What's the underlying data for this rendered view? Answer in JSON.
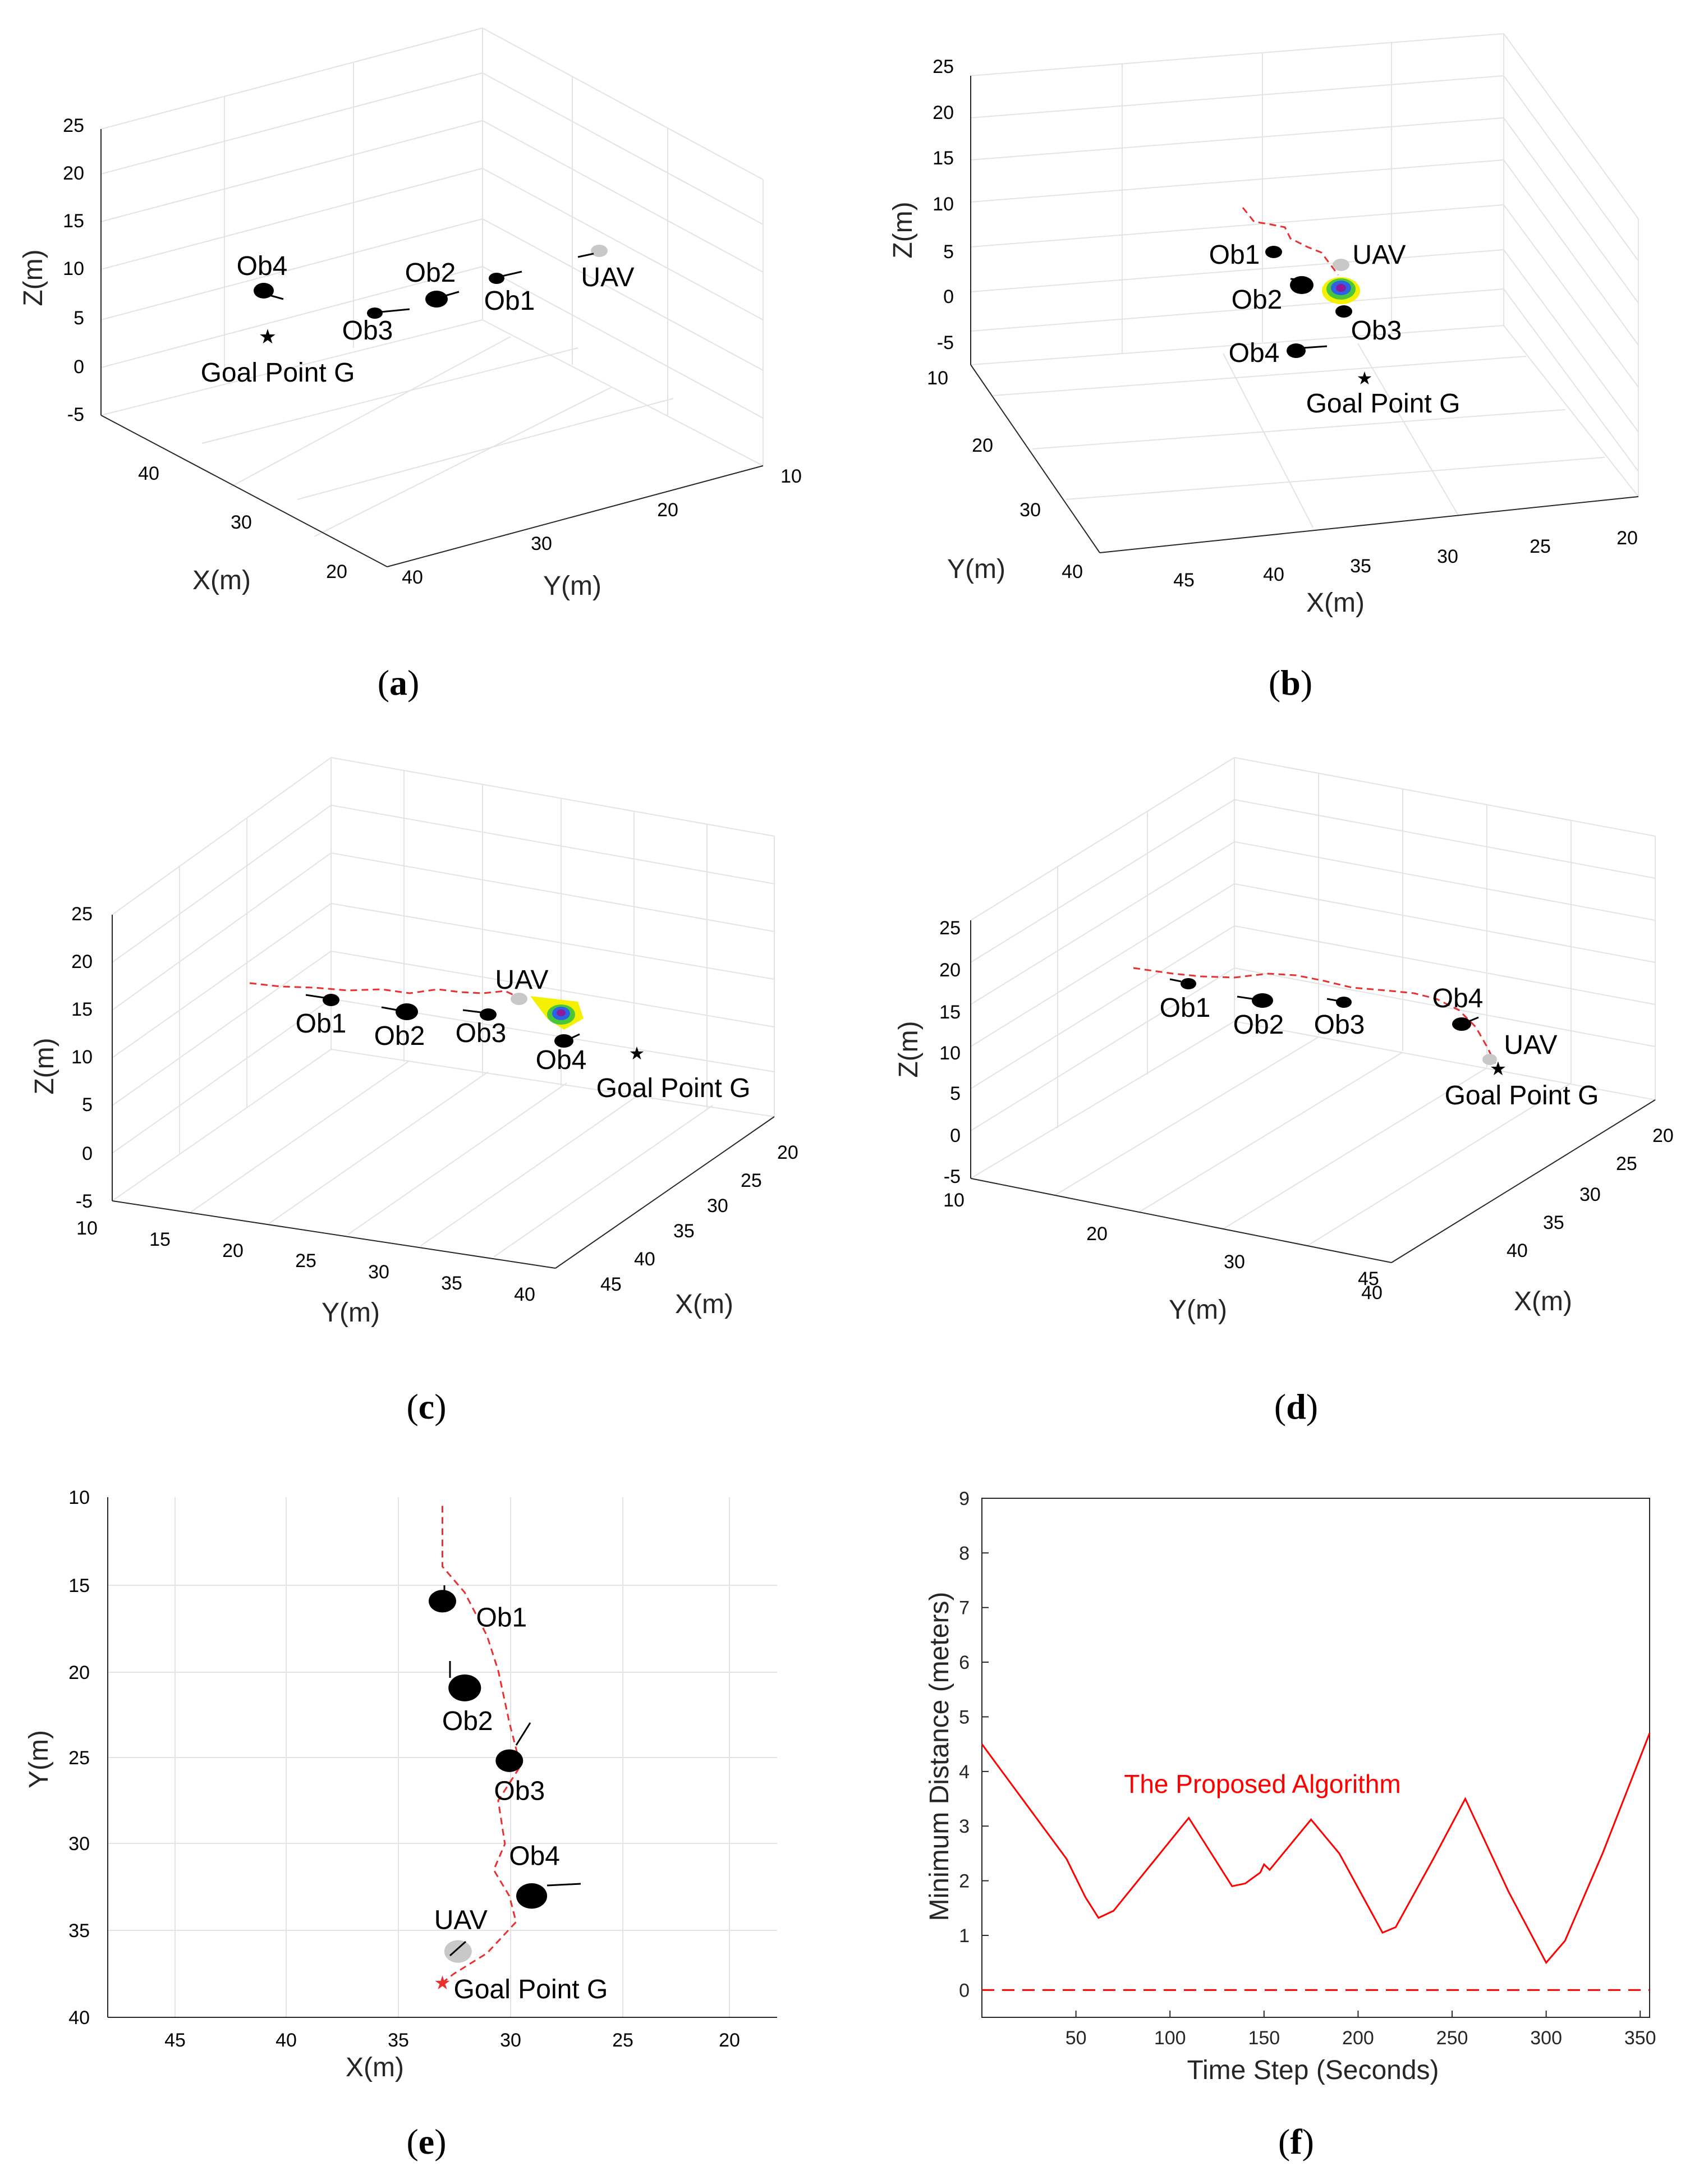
{
  "panels": [
    {
      "caption": "a",
      "xlabel": "X(m)",
      "ylabel": "Y(m)",
      "zlabel": "Z(m)",
      "z_ticks": [
        "25",
        "20",
        "15",
        "10",
        "5",
        "0",
        "-5"
      ],
      "x_ticks": [
        "40",
        "30",
        "20"
      ],
      "y_ticks": [
        "10",
        "20",
        "30",
        "40"
      ],
      "objects": [
        "Ob4",
        "Ob2",
        "Ob1",
        "Ob3",
        "UAV",
        "Goal Point G"
      ]
    },
    {
      "caption": "b",
      "xlabel": "X(m)",
      "ylabel": "Y(m)",
      "zlabel": "Z(m)",
      "z_ticks": [
        "25",
        "20",
        "15",
        "10",
        "5",
        "0",
        "-5"
      ],
      "x_ticks": [
        "45",
        "40",
        "35",
        "30",
        "25",
        "20"
      ],
      "y_ticks": [
        "10",
        "20",
        "30",
        "40"
      ],
      "objects": [
        "Ob1",
        "UAV",
        "Ob2",
        "Ob3",
        "Ob4",
        "Goal Point G"
      ]
    },
    {
      "caption": "c",
      "xlabel": "X(m)",
      "ylabel": "Y(m)",
      "zlabel": "Z(m)",
      "z_ticks": [
        "25",
        "20",
        "15",
        "10",
        "5",
        "0",
        "-5"
      ],
      "x_ticks": [
        "20",
        "25",
        "30",
        "35",
        "40",
        "45"
      ],
      "y_ticks": [
        "10",
        "15",
        "20",
        "25",
        "30",
        "35",
        "40"
      ],
      "objects": [
        "UAV",
        "Ob1",
        "Ob2",
        "Ob3",
        "Ob4",
        "Goal Point G"
      ]
    },
    {
      "caption": "d",
      "xlabel": "X(m)",
      "ylabel": "Y(m)",
      "zlabel": "Z(m)",
      "z_ticks": [
        "25",
        "20",
        "15",
        "10",
        "5",
        "0",
        "-5"
      ],
      "x_ticks": [
        "20",
        "25",
        "30",
        "35",
        "40",
        "45"
      ],
      "y_ticks": [
        "10",
        "20",
        "30",
        "40"
      ],
      "objects": [
        "Ob1",
        "Ob2",
        "Ob3",
        "Ob4",
        "UAV",
        "Goal Point G"
      ]
    },
    {
      "caption": "e",
      "xlabel": "X(m)",
      "ylabel": "Y(m)",
      "x_ticks": [
        "45",
        "40",
        "35",
        "30",
        "25",
        "20"
      ],
      "y_ticks": [
        "10",
        "15",
        "20",
        "25",
        "30",
        "35",
        "40"
      ],
      "objects": [
        "Ob1",
        "Ob2",
        "Ob3",
        "Ob4",
        "UAV",
        "Goal Point G"
      ]
    },
    {
      "caption": "f",
      "xlabel": "Time Step (Seconds)",
      "ylabel": "Minimum Distance (meters)",
      "annotation": "The Proposed Algorithm"
    }
  ],
  "chart_data": [
    {
      "panel": "e",
      "type": "line",
      "title": "",
      "xlabel": "X(m)",
      "ylabel": "Y(m)",
      "xlim": [
        48,
        18
      ],
      "ylim": [
        40,
        10
      ],
      "series": [
        {
          "name": "UAV path",
          "style": "dashed",
          "color": "#e8302e",
          "x": [
            33,
            33,
            32,
            31,
            30.5,
            30,
            29.5,
            30.5,
            30.2,
            30.7,
            30,
            29.7,
            31,
            32.5,
            33
          ],
          "y": [
            10.5,
            14,
            15.5,
            18,
            20,
            23,
            25.5,
            27.5,
            30,
            31.5,
            33,
            34.5,
            36.3,
            37.5,
            38
          ]
        }
      ],
      "points": [
        {
          "label": "Ob1",
          "x": 33,
          "y": 16,
          "size": 0.6
        },
        {
          "label": "Ob2",
          "x": 32,
          "y": 21,
          "size": 0.9
        },
        {
          "label": "Ob3",
          "x": 30,
          "y": 25.2,
          "size": 0.6
        },
        {
          "label": "Ob4",
          "x": 29,
          "y": 33,
          "size": 0.8
        },
        {
          "label": "UAV",
          "x": 32.3,
          "y": 36.2,
          "size": 0.6
        },
        {
          "label": "Goal Point G",
          "x": 33,
          "y": 38
        }
      ]
    },
    {
      "panel": "f",
      "type": "line",
      "title": "",
      "xlabel": "Time Step (Seconds)",
      "ylabel": "Minimum Distance (meters)",
      "xlim": [
        0,
        355
      ],
      "ylim": [
        -0.5,
        9
      ],
      "x_ticks": [
        50,
        100,
        150,
        200,
        250,
        300,
        350
      ],
      "y_ticks": [
        0,
        1,
        2,
        3,
        4,
        5,
        6,
        7,
        8,
        9
      ],
      "series": [
        {
          "name": "The Proposed Algorithm",
          "color": "#ff0000",
          "x": [
            0,
            45,
            55,
            62,
            70,
            90,
            110,
            133,
            140,
            148,
            150,
            153,
            175,
            190,
            213,
            220,
            240,
            257,
            280,
            300,
            310,
            330,
            355
          ],
          "y": [
            4.5,
            2.4,
            1.7,
            1.32,
            1.45,
            2.3,
            3.15,
            1.9,
            1.95,
            2.15,
            2.3,
            2.2,
            3.12,
            2.5,
            1.05,
            1.15,
            2.4,
            3.5,
            1.8,
            0.5,
            0.9,
            2.5,
            4.7
          ]
        },
        {
          "name": "zero",
          "style": "dashed",
          "color": "#ff0000",
          "x": [
            0,
            355
          ],
          "y": [
            0,
            0
          ]
        }
      ]
    }
  ]
}
